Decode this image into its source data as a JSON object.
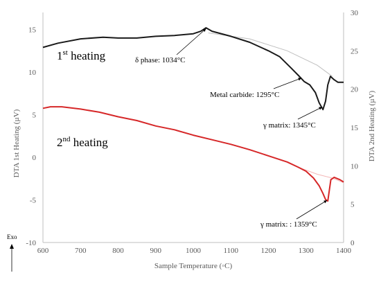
{
  "chart_data": {
    "type": "line",
    "xlabel": "Sample Temperature (◦C)",
    "ylabel_left": "DTA 1st Heating (µV)",
    "ylabel_right": "DTA 2nd Heating (µV)",
    "xlim": [
      600,
      1400
    ],
    "ylim_left": [
      -10,
      17
    ],
    "ylim_right": [
      0,
      30
    ],
    "xticks": [
      600,
      700,
      800,
      900,
      1000,
      1100,
      1200,
      1300,
      1400
    ],
    "yticks_left": [
      -10,
      -5,
      0,
      5,
      10,
      15
    ],
    "yticks_right": [
      0,
      5,
      10,
      15,
      20,
      25,
      30
    ],
    "grid": false,
    "series": [
      {
        "axis": "left",
        "color": "#1a1a1a",
        "points": [
          [
            600,
            12.9
          ],
          [
            640,
            13.4
          ],
          [
            700,
            13.9
          ],
          [
            760,
            14.1
          ],
          [
            800,
            14.0
          ],
          [
            850,
            14.0
          ],
          [
            900,
            14.2
          ],
          [
            950,
            14.3
          ],
          [
            1000,
            14.5
          ],
          [
            1020,
            14.8
          ],
          [
            1034,
            15.2
          ],
          [
            1050,
            14.8
          ],
          [
            1100,
            14.2
          ],
          [
            1150,
            13.5
          ],
          [
            1200,
            12.5
          ],
          [
            1230,
            11.8
          ],
          [
            1260,
            10.5
          ],
          [
            1280,
            9.6
          ],
          [
            1295,
            8.9
          ],
          [
            1310,
            8.5
          ],
          [
            1325,
            7.6
          ],
          [
            1335,
            6.4
          ],
          [
            1345,
            5.6
          ],
          [
            1352,
            6.6
          ],
          [
            1358,
            8.5
          ],
          [
            1365,
            9.5
          ],
          [
            1375,
            9.1
          ],
          [
            1385,
            8.8
          ],
          [
            1400,
            8.8
          ]
        ]
      },
      {
        "axis": "right",
        "color": "#d62728",
        "points": [
          [
            600,
            17.5
          ],
          [
            620,
            17.7
          ],
          [
            650,
            17.7
          ],
          [
            700,
            17.4
          ],
          [
            750,
            17.0
          ],
          [
            800,
            16.4
          ],
          [
            850,
            15.9
          ],
          [
            900,
            15.2
          ],
          [
            950,
            14.7
          ],
          [
            1000,
            14.0
          ],
          [
            1050,
            13.4
          ],
          [
            1100,
            12.8
          ],
          [
            1150,
            12.1
          ],
          [
            1200,
            11.3
          ],
          [
            1250,
            10.5
          ],
          [
            1280,
            9.8
          ],
          [
            1300,
            9.3
          ],
          [
            1320,
            8.4
          ],
          [
            1335,
            7.4
          ],
          [
            1345,
            6.4
          ],
          [
            1352,
            5.6
          ],
          [
            1358,
            5.4
          ],
          [
            1362,
            6.8
          ],
          [
            1366,
            8.2
          ],
          [
            1375,
            8.5
          ],
          [
            1390,
            8.2
          ],
          [
            1400,
            7.9
          ]
        ]
      }
    ],
    "baselines": [
      {
        "axis": "left",
        "color": "#bfbfbf",
        "points": [
          [
            1040,
            14.6
          ],
          [
            1150,
            13.9
          ],
          [
            1250,
            12.5
          ],
          [
            1330,
            10.8
          ],
          [
            1370,
            9.5
          ]
        ]
      },
      {
        "axis": "right",
        "color": "#f4b6b6",
        "points": [
          [
            1280,
            9.8
          ],
          [
            1330,
            8.9
          ],
          [
            1370,
            8.4
          ],
          [
            1400,
            7.8
          ]
        ]
      }
    ],
    "labels": {
      "first_heating": "1st heating",
      "second_heating": "2nd heating",
      "delta_phase": "δ phase: 1034°C",
      "metal_carbide": "Metal carbide: 1295°C",
      "gamma_1": "γ matrix: 1345°C",
      "gamma_2": "γ matrix: : 1359°C",
      "exo": "Exo"
    }
  }
}
